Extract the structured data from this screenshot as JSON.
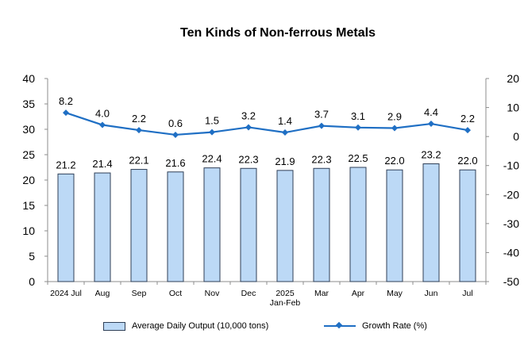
{
  "chart_data": {
    "type": "bar",
    "title": "Ten Kinds of Non-ferrous Metals",
    "categories": [
      "2024 Jul",
      "Aug",
      "Sep",
      "Oct",
      "Nov",
      "Dec",
      "2025 Jan-Feb",
      "Mar",
      "Apr",
      "May",
      "Jun",
      "Jul"
    ],
    "category_labels": [
      [
        "2024 Jul"
      ],
      [
        "Aug"
      ],
      [
        "Sep"
      ],
      [
        "Oct"
      ],
      [
        "Nov"
      ],
      [
        "Dec"
      ],
      [
        "2025",
        "Jan-Feb"
      ],
      [
        "Mar"
      ],
      [
        "Apr"
      ],
      [
        "May"
      ],
      [
        "Jun"
      ],
      [
        "Jul"
      ]
    ],
    "series": [
      {
        "name": "Average Daily Output (10,000 tons)",
        "type": "bar",
        "axis": "left",
        "color": "#bcd9f6",
        "edge_color": "#2f3f57",
        "values": [
          21.2,
          21.4,
          22.1,
          21.6,
          22.4,
          22.3,
          21.9,
          22.3,
          22.5,
          22.0,
          23.2,
          22.0
        ],
        "labels": [
          "21.2",
          "21.4",
          "22.1",
          "21.6",
          "22.4",
          "22.3",
          "21.9",
          "22.3",
          "22.5",
          "22.0",
          "23.2",
          "22.0"
        ]
      },
      {
        "name": "Growth Rate (%)",
        "type": "line",
        "axis": "right",
        "color": "#1f6fc4",
        "marker": "diamond",
        "values": [
          8.2,
          4.0,
          2.2,
          0.6,
          1.5,
          3.2,
          1.4,
          3.7,
          3.1,
          2.9,
          4.4,
          2.2
        ],
        "labels": [
          "8.2",
          "4.0",
          "2.2",
          "0.6",
          "1.5",
          "3.2",
          "1.4",
          "3.7",
          "3.1",
          "2.9",
          "4.4",
          "2.2"
        ]
      }
    ],
    "y_left": {
      "min": 0,
      "max": 40,
      "step": 5,
      "ticks": [
        "0",
        "5",
        "10",
        "15",
        "20",
        "25",
        "30",
        "35",
        "40"
      ]
    },
    "y_right": {
      "min": -50,
      "max": 20,
      "step": 10,
      "ticks": [
        "-50",
        "-40",
        "-30",
        "-20",
        "-10",
        "0",
        "10",
        "20"
      ]
    },
    "grid": false,
    "legend_position": "bottom"
  }
}
